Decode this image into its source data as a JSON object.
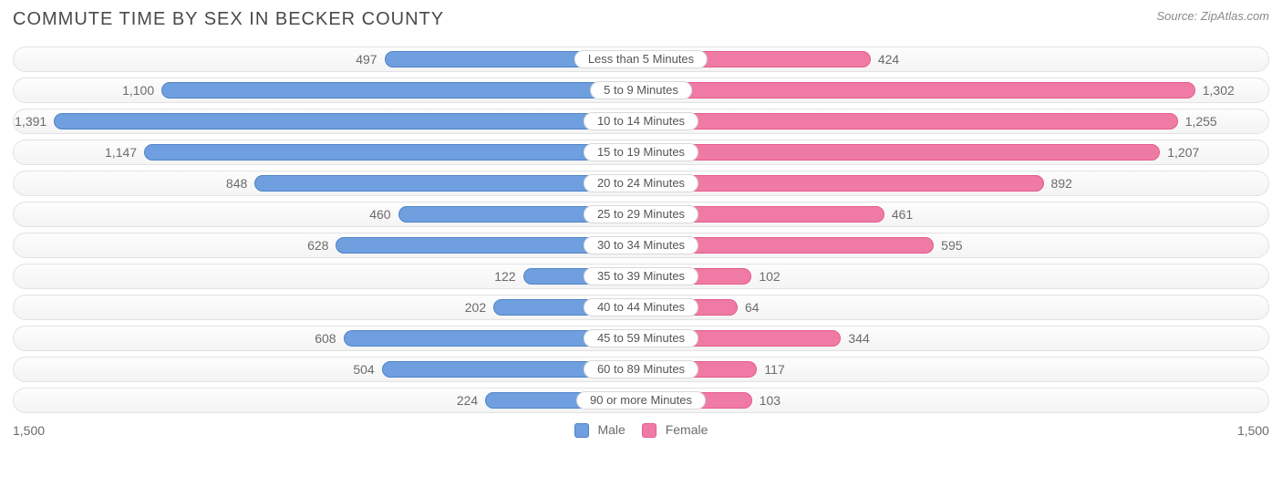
{
  "title": "COMMUTE TIME BY SEX IN BECKER COUNTY",
  "source": "Source: ZipAtlas.com",
  "axis_max": 1500,
  "axis_max_label": "1,500",
  "colors": {
    "male_fill": "#6f9fde",
    "male_border": "#4f83c9",
    "female_fill": "#ef7ba4",
    "female_border": "#e55a8d",
    "row_border": "#e2e2e2",
    "pill_border": "#d9d9d9",
    "text": "#6b6b6b",
    "title_text": "#4a4a4a",
    "source_text": "#8a8a8a",
    "background": "#ffffff"
  },
  "legend": {
    "male": "Male",
    "female": "Female"
  },
  "rows": [
    {
      "category": "Less than 5 Minutes",
      "male": 497,
      "male_label": "497",
      "female": 424,
      "female_label": "424"
    },
    {
      "category": "5 to 9 Minutes",
      "male": 1100,
      "male_label": "1,100",
      "female": 1302,
      "female_label": "1,302"
    },
    {
      "category": "10 to 14 Minutes",
      "male": 1391,
      "male_label": "1,391",
      "female": 1255,
      "female_label": "1,255"
    },
    {
      "category": "15 to 19 Minutes",
      "male": 1147,
      "male_label": "1,147",
      "female": 1207,
      "female_label": "1,207"
    },
    {
      "category": "20 to 24 Minutes",
      "male": 848,
      "male_label": "848",
      "female": 892,
      "female_label": "892"
    },
    {
      "category": "25 to 29 Minutes",
      "male": 460,
      "male_label": "460",
      "female": 461,
      "female_label": "461"
    },
    {
      "category": "30 to 34 Minutes",
      "male": 628,
      "male_label": "628",
      "female": 595,
      "female_label": "595"
    },
    {
      "category": "35 to 39 Minutes",
      "male": 122,
      "male_label": "122",
      "female": 102,
      "female_label": "102"
    },
    {
      "category": "40 to 44 Minutes",
      "male": 202,
      "male_label": "202",
      "female": 64,
      "female_label": "64"
    },
    {
      "category": "45 to 59 Minutes",
      "male": 608,
      "male_label": "608",
      "female": 344,
      "female_label": "344"
    },
    {
      "category": "60 to 89 Minutes",
      "male": 504,
      "male_label": "504",
      "female": 117,
      "female_label": "117"
    },
    {
      "category": "90 or more Minutes",
      "male": 224,
      "male_label": "224",
      "female": 103,
      "female_label": "103"
    }
  ]
}
